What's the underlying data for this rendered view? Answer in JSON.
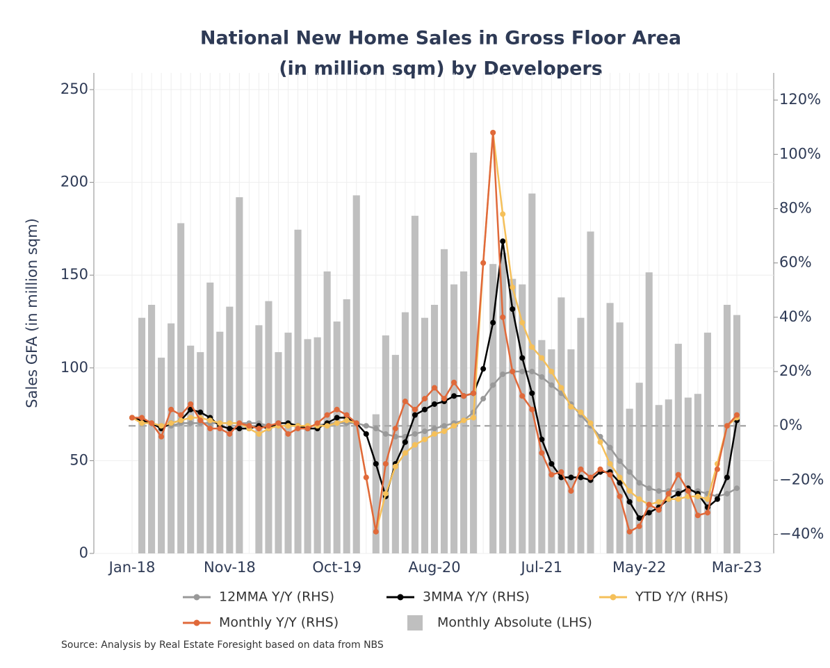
{
  "chart_data": {
    "type": "combo",
    "title": "National New Home Sales in Gross Floor Area",
    "subtitle": "(in million sqm) by Developers",
    "ylabel": "Sales GFA (in million sqm)",
    "source": "Source: Analysis by Real Estate Foresight based on data from NBS",
    "categories": [
      "Jan-18",
      null,
      null,
      null,
      null,
      null,
      null,
      null,
      null,
      null,
      "Nov-18",
      null,
      null,
      null,
      null,
      null,
      null,
      null,
      null,
      null,
      null,
      "Oct-19",
      null,
      null,
      null,
      null,
      null,
      null,
      null,
      null,
      null,
      "Aug-20",
      null,
      null,
      null,
      null,
      null,
      null,
      null,
      null,
      null,
      null,
      "Jul-21",
      null,
      null,
      null,
      null,
      null,
      null,
      null,
      null,
      null,
      "May-22",
      null,
      null,
      null,
      null,
      null,
      null,
      null,
      null,
      null,
      "Mar-23"
    ],
    "ylim": [
      0,
      259
    ],
    "yticks": [
      0,
      50,
      100,
      150,
      200,
      250
    ],
    "y2lim": [
      -47,
      130
    ],
    "y2ticks": [
      {
        "value": -40,
        "label": "−40%"
      },
      {
        "value": -20,
        "label": "−20%"
      },
      {
        "value": 0,
        "label": "0%"
      },
      {
        "value": 20,
        "label": "20%"
      },
      {
        "value": 40,
        "label": "40%"
      },
      {
        "value": 60,
        "label": "60%"
      },
      {
        "value": 80,
        "label": "80%"
      },
      {
        "value": 100,
        "label": "100%"
      },
      {
        "value": 120,
        "label": "120%"
      }
    ],
    "grid": true,
    "reference_lines": [
      {
        "axis": "y2",
        "value": 0,
        "color": "#aaaaaa"
      }
    ],
    "series": [
      {
        "name": "12MMA Y/Y (RHS)",
        "type": "line",
        "axis": "y2",
        "color": "#999999",
        "values": [
          3,
          2,
          1,
          0,
          0,
          1,
          1,
          1,
          1,
          1,
          1,
          1,
          1,
          1,
          0,
          0,
          0,
          0,
          0,
          0,
          1,
          1,
          1,
          1,
          0,
          -1,
          -3,
          -4,
          -4,
          -3,
          -2,
          -1,
          0,
          1,
          2,
          5,
          10,
          15,
          19,
          20,
          20,
          20,
          18,
          15,
          12,
          8,
          4,
          0,
          -4,
          -8,
          -13,
          -17,
          -21,
          -23,
          -24,
          -24,
          -24,
          -24,
          -24,
          -25,
          -26,
          -25,
          -23
        ]
      },
      {
        "name": "3MMA Y/Y (RHS)",
        "type": "line",
        "axis": "y2",
        "color": "#000000",
        "values": [
          3,
          2,
          1,
          -1,
          1,
          2,
          6,
          5,
          3,
          0,
          -1,
          -1,
          -1,
          0,
          -1,
          1,
          1,
          0,
          -1,
          -1,
          1,
          3,
          3,
          1,
          -3,
          -14,
          -26,
          -14,
          -6,
          4,
          6,
          8,
          9,
          11,
          11,
          12,
          21,
          38,
          68,
          43,
          25,
          12,
          -5,
          -14,
          -19,
          -19,
          -19,
          -20,
          -17,
          -17,
          -21,
          -28,
          -34,
          -32,
          -30,
          -27,
          -25,
          -23,
          -25,
          -30,
          -27,
          -19,
          2
        ]
      },
      {
        "name": "YTD Y/Y (RHS)",
        "type": "line",
        "axis": "y2",
        "color": "#f5c05a",
        "values": [
          3,
          1,
          1,
          0,
          1,
          2,
          3,
          3,
          2,
          1,
          1,
          1,
          -1,
          -3,
          -1,
          0,
          0,
          0,
          0,
          0,
          0,
          1,
          2,
          1,
          -19,
          -39,
          -25,
          -15,
          -10,
          -7,
          -5,
          -3,
          -2,
          0,
          2,
          3,
          60,
          108,
          78,
          51,
          38,
          29,
          25,
          20,
          14,
          7,
          5,
          1,
          -6,
          -14,
          -19,
          -24,
          -27,
          -29,
          -28,
          -27,
          -27,
          -26,
          -26,
          -27,
          -14,
          0,
          3
        ]
      },
      {
        "name": "Monthly Y/Y (RHS)",
        "type": "line",
        "axis": "y2",
        "color": "#e0693a",
        "values": [
          3,
          3,
          1,
          -4,
          6,
          4,
          8,
          2,
          -1,
          -1,
          -3,
          1,
          0,
          -1,
          0,
          1,
          -3,
          -1,
          -1,
          1,
          4,
          6,
          4,
          1,
          -19,
          -39,
          -14,
          -1,
          9,
          6,
          10,
          14,
          10,
          16,
          11,
          12,
          60,
          108,
          40,
          20,
          11,
          6,
          -10,
          -18,
          -17,
          -24,
          -16,
          -19,
          -16,
          -18,
          -26,
          -39,
          -37,
          -29,
          -31,
          -25,
          -18,
          -24,
          -33,
          -32,
          -16,
          0,
          4
        ]
      },
      {
        "name": "Monthly Absolute (LHS)",
        "type": "bar",
        "axis": "y",
        "color": "#bfbfbf",
        "values": [
          null,
          127,
          134,
          105.5,
          124,
          178,
          112,
          108.5,
          146,
          119.5,
          133,
          192,
          null,
          123,
          136,
          108.5,
          119,
          174.5,
          115.5,
          116.5,
          152,
          125,
          137,
          193,
          null,
          75,
          117.5,
          107,
          130,
          182,
          127,
          134,
          164,
          145,
          152,
          216,
          null,
          156,
          162,
          148,
          145,
          194,
          115,
          110,
          138,
          110,
          127,
          173.5,
          null,
          135,
          124.5,
          78,
          92,
          151.5,
          80,
          83,
          113,
          84,
          86,
          119,
          null,
          134,
          128.5
        ]
      }
    ]
  }
}
